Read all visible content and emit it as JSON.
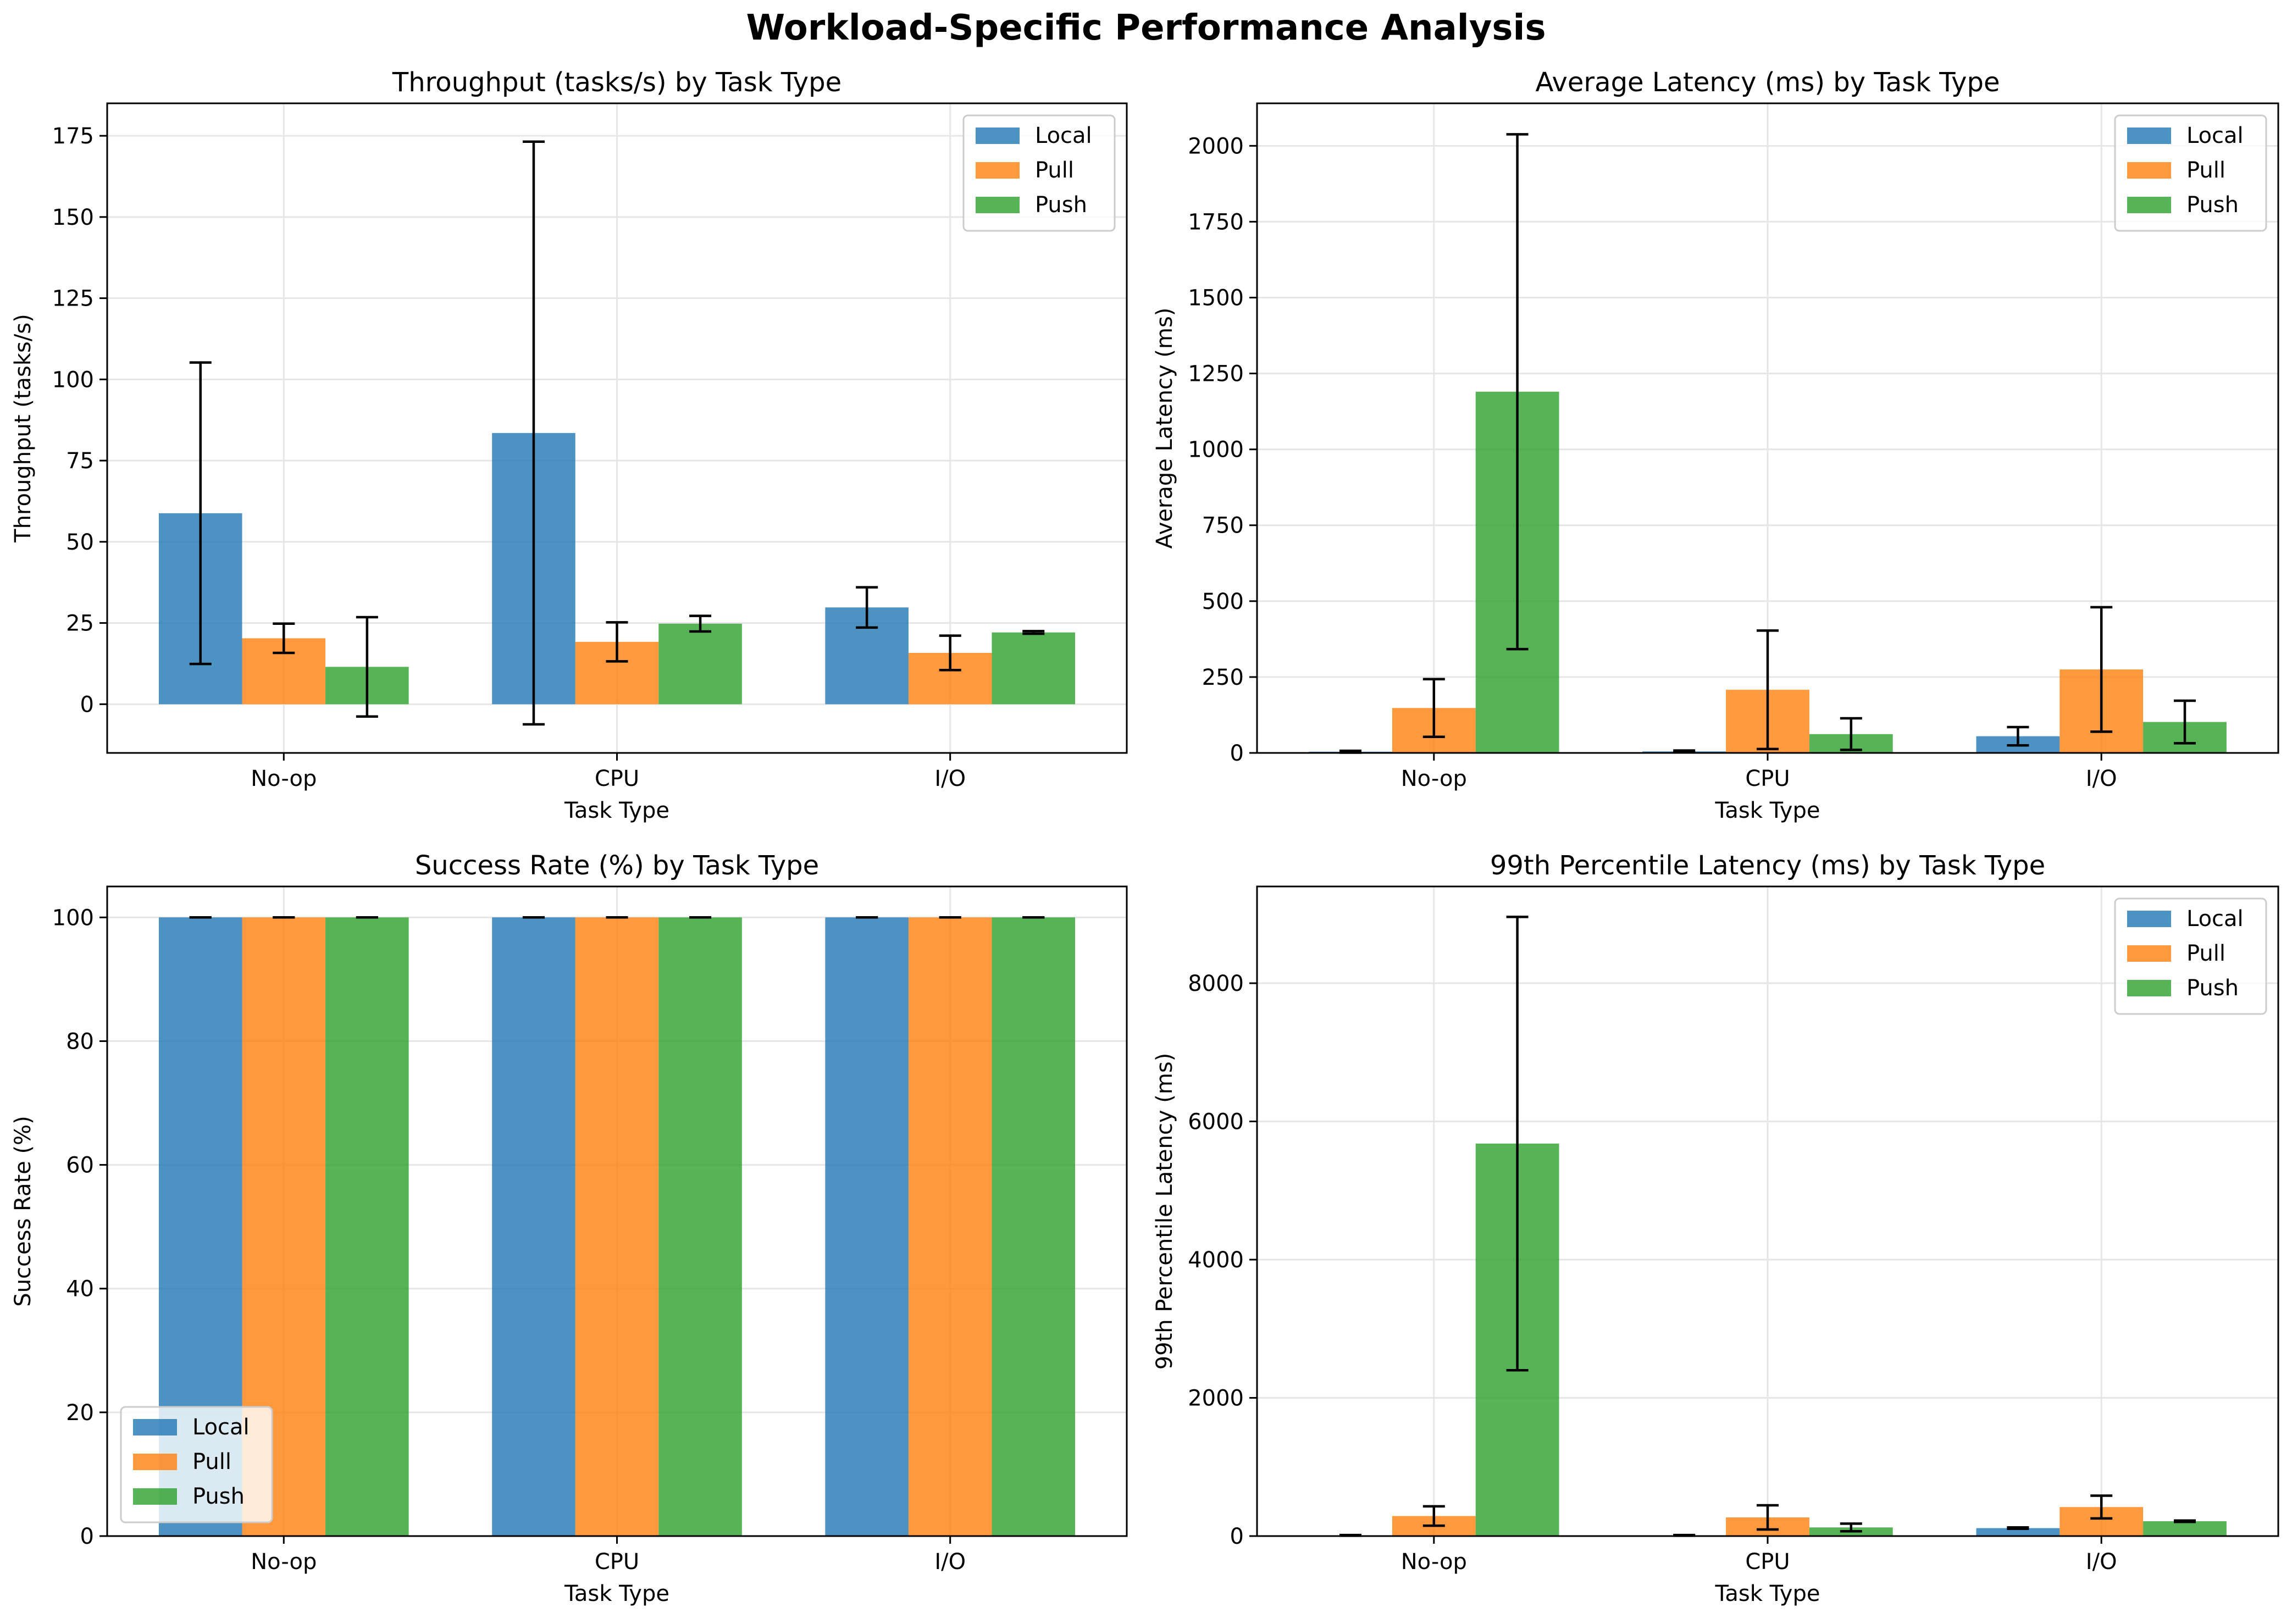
{
  "figure": {
    "title": "Workload-Specific Performance Analysis"
  },
  "colors": {
    "Local": "#1f77b4",
    "Pull": "#ff7f0e",
    "Push": "#2ca02c"
  },
  "chart_data": [
    {
      "type": "bar",
      "title": "Throughput (tasks/s) by Task Type",
      "xlabel": "Task Type",
      "ylabel": "Throughput (tasks/s)",
      "categories": [
        "No-op",
        "CPU",
        "I/O"
      ],
      "ylim": [
        -15,
        185
      ],
      "yticks": [
        0,
        25,
        50,
        75,
        100,
        125,
        150,
        175
      ],
      "legend": "top-right",
      "grid": true,
      "series": [
        {
          "name": "Local",
          "values": [
            58.8,
            83.5,
            29.8
          ],
          "errors": [
            46.4,
            89.7,
            6.2
          ]
        },
        {
          "name": "Pull",
          "values": [
            20.3,
            19.2,
            15.8
          ],
          "errors": [
            4.5,
            6.0,
            5.3
          ]
        },
        {
          "name": "Push",
          "values": [
            11.5,
            24.8,
            22.1
          ],
          "errors": [
            15.3,
            2.4,
            0.4
          ]
        }
      ]
    },
    {
      "type": "bar",
      "title": "Average Latency (ms) by Task Type",
      "xlabel": "Task Type",
      "ylabel": "Average Latency (ms)",
      "categories": [
        "No-op",
        "CPU",
        "I/O"
      ],
      "ylim": [
        0,
        2140
      ],
      "yticks": [
        0,
        250,
        500,
        750,
        1000,
        1250,
        1500,
        1750,
        2000
      ],
      "legend": "top-right",
      "grid": true,
      "series": [
        {
          "name": "Local",
          "values": [
            4,
            5,
            55
          ],
          "errors": [
            3,
            3,
            30
          ]
        },
        {
          "name": "Pull",
          "values": [
            148,
            208,
            275
          ],
          "errors": [
            95,
            195,
            205
          ]
        },
        {
          "name": "Push",
          "values": [
            1190,
            62,
            102
          ],
          "errors": [
            848,
            52,
            70
          ]
        }
      ]
    },
    {
      "type": "bar",
      "title": "Success Rate (%) by Task Type",
      "xlabel": "Task Type",
      "ylabel": "Success Rate (%)",
      "categories": [
        "No-op",
        "CPU",
        "I/O"
      ],
      "ylim": [
        0,
        105
      ],
      "yticks": [
        0,
        20,
        40,
        60,
        80,
        100
      ],
      "legend": "bottom-left",
      "grid": true,
      "series": [
        {
          "name": "Local",
          "values": [
            100,
            100,
            100
          ],
          "errors": [
            0,
            0,
            0
          ]
        },
        {
          "name": "Pull",
          "values": [
            100,
            100,
            100
          ],
          "errors": [
            0,
            0,
            0
          ]
        },
        {
          "name": "Push",
          "values": [
            100,
            100,
            100
          ],
          "errors": [
            0,
            0,
            0
          ]
        }
      ]
    },
    {
      "type": "bar",
      "title": "99th Percentile Latency (ms) by Task Type",
      "xlabel": "Task Type",
      "ylabel": "99th Percentile Latency (ms)",
      "categories": [
        "No-op",
        "CPU",
        "I/O"
      ],
      "ylim": [
        0,
        9400
      ],
      "yticks": [
        0,
        2000,
        4000,
        6000,
        8000
      ],
      "legend": "top-right",
      "grid": true,
      "series": [
        {
          "name": "Local",
          "values": [
            10,
            10,
            115
          ],
          "errors": [
            5,
            5,
            10
          ]
        },
        {
          "name": "Pull",
          "values": [
            290,
            270,
            420
          ],
          "errors": [
            140,
            175,
            165
          ]
        },
        {
          "name": "Push",
          "values": [
            5680,
            125,
            215
          ],
          "errors": [
            3280,
            55,
            10
          ]
        }
      ]
    }
  ]
}
